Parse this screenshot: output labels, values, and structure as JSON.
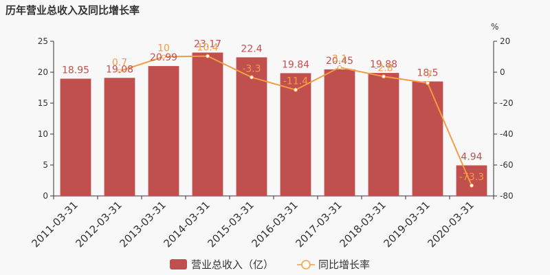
{
  "chart_data": {
    "type": "bar",
    "title": "历年营业总收入及同比增长率",
    "categories": [
      "2011-03-31",
      "2012-03-31",
      "2013-03-31",
      "2014-03-31",
      "2015-03-31",
      "2016-03-31",
      "2017-03-31",
      "2018-03-31",
      "2019-03-31",
      "2020-03-31"
    ],
    "series": [
      {
        "name": "营业总收入（亿）",
        "type": "bar",
        "axis": "left",
        "values": [
          18.95,
          19.08,
          20.99,
          23.17,
          22.4,
          19.84,
          20.45,
          19.88,
          18.5,
          4.94
        ],
        "labels": [
          "18.95",
          "19.08",
          "20.99",
          "23.17",
          "22.4",
          "19.84",
          "20.45",
          "19.88",
          "18.5",
          "4.94"
        ],
        "color": "#c0504d"
      },
      {
        "name": "同比增长率",
        "type": "line",
        "axis": "right",
        "values": [
          null,
          0.7,
          10,
          10.4,
          -3.3,
          -11.4,
          3.1,
          -2.8,
          -7,
          -73.3
        ],
        "labels": [
          "",
          "0.7",
          "10",
          "10.4",
          "-3.3",
          "-11.4",
          "3.1",
          "-2.8",
          "-7",
          "-73.3"
        ],
        "color": "#f39c44"
      }
    ],
    "y_left": {
      "min": 0,
      "max": 25,
      "ticks": [
        0,
        5,
        10,
        15,
        20,
        25
      ]
    },
    "y_right": {
      "min": -80,
      "max": 20,
      "ticks": [
        -80,
        -60,
        -40,
        -20,
        0,
        20
      ],
      "unit": "%"
    },
    "legend": {
      "position": "bottom-center"
    },
    "grid": false
  }
}
